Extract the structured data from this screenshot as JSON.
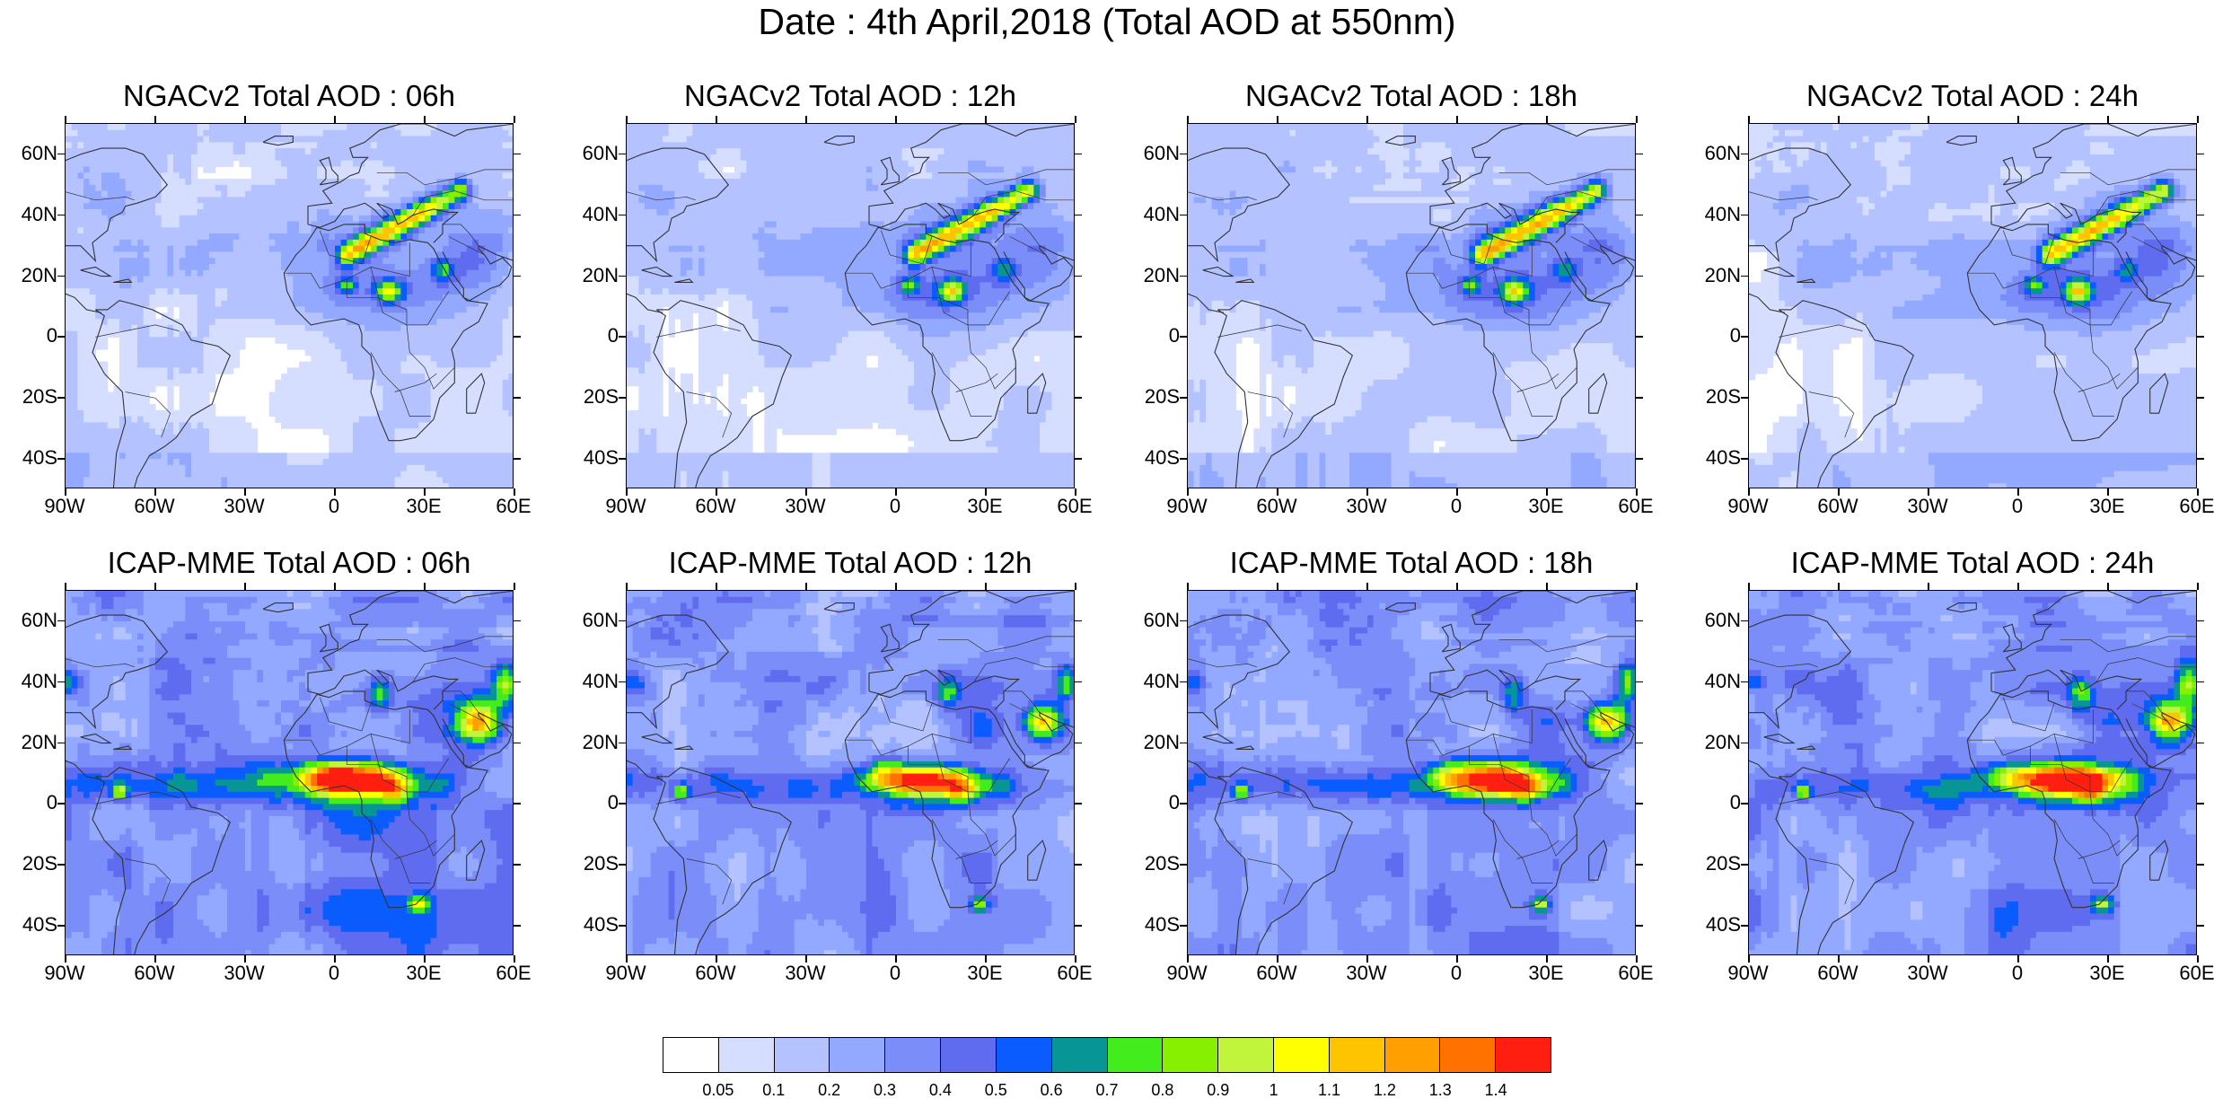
{
  "title": "Date : 4th April,2018 (Total AOD at 550nm)",
  "map_axes": {
    "lat_labels": [
      "60N",
      "40N",
      "20N",
      "0",
      "20S",
      "40S"
    ],
    "lat_values": [
      60,
      40,
      20,
      0,
      -20,
      -40
    ],
    "lon_labels": [
      "90W",
      "60W",
      "30W",
      "0",
      "30E",
      "60E"
    ],
    "lon_values": [
      -90,
      -60,
      -30,
      0,
      30,
      60
    ],
    "lat_range": [
      -50,
      70
    ],
    "lon_range": [
      -90,
      60
    ]
  },
  "panels": [
    {
      "title": "NGACv2 Total AOD : 06h",
      "model": "NGACv2",
      "hour": 6
    },
    {
      "title": "NGACv2 Total AOD : 12h",
      "model": "NGACv2",
      "hour": 12
    },
    {
      "title": "NGACv2 Total AOD : 18h",
      "model": "NGACv2",
      "hour": 18
    },
    {
      "title": "NGACv2 Total AOD : 24h",
      "model": "NGACv2",
      "hour": 24
    },
    {
      "title": "ICAP-MME Total AOD : 06h",
      "model": "ICAP-MME",
      "hour": 6
    },
    {
      "title": "ICAP-MME Total AOD : 12h",
      "model": "ICAP-MME",
      "hour": 12
    },
    {
      "title": "ICAP-MME Total AOD : 18h",
      "model": "ICAP-MME",
      "hour": 18
    },
    {
      "title": "ICAP-MME Total AOD : 24h",
      "model": "ICAP-MME",
      "hour": 24
    }
  ],
  "colorbar": {
    "labels": [
      "0.05",
      "0.1",
      "0.2",
      "0.3",
      "0.4",
      "0.5",
      "0.6",
      "0.7",
      "0.8",
      "0.9",
      "1",
      "1.1",
      "1.2",
      "1.3",
      "1.4"
    ],
    "colors": [
      "#ffffff",
      "#d6deff",
      "#b4c3ff",
      "#93a9ff",
      "#7a8df8",
      "#5f6cf0",
      "#0a5cff",
      "#089595",
      "#43ec1c",
      "#87f000",
      "#c1f53c",
      "#ffff00",
      "#ffc400",
      "#ffa000",
      "#ff7200",
      "#ff1e10"
    ]
  }
}
